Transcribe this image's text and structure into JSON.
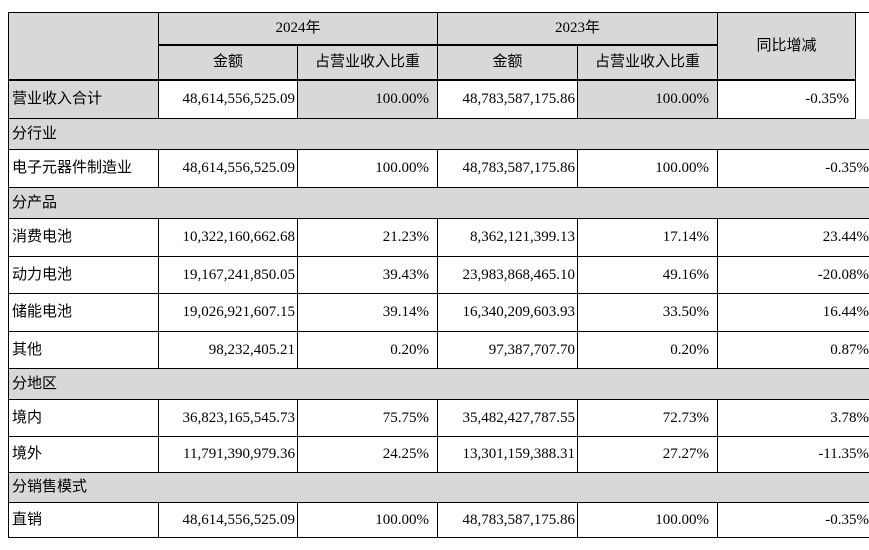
{
  "colors": {
    "shading": "#d8d8d8",
    "border": "#000000",
    "text": "#000000",
    "page_bg": "#ffffff"
  },
  "table": {
    "header": {
      "year_2024": "2024年",
      "year_2023": "2023年",
      "amount": "金额",
      "ratio": "占营业收入比重",
      "yoy": "同比增减"
    },
    "rows": [
      {
        "type": "data",
        "highlight": true,
        "label": "营业收入合计",
        "a2024": "48,614,556,525.09",
        "r2024": "100.00%",
        "a2023": "48,783,587,175.86",
        "r2023": "100.00%",
        "yoy": "-0.35%"
      },
      {
        "type": "band",
        "label": "分行业"
      },
      {
        "type": "data",
        "label": "电子元器件制造业",
        "a2024": "48,614,556,525.09",
        "r2024": "100.00%",
        "a2023": "48,783,587,175.86",
        "r2023": "100.00%",
        "yoy": "-0.35%"
      },
      {
        "type": "band",
        "label": "分产品"
      },
      {
        "type": "data",
        "label": "消费电池",
        "a2024": "10,322,160,662.68",
        "r2024": "21.23%",
        "a2023": "8,362,121,399.13",
        "r2023": "17.14%",
        "yoy": "23.44%"
      },
      {
        "type": "data",
        "label": "动力电池",
        "a2024": "19,167,241,850.05",
        "r2024": "39.43%",
        "a2023": "23,983,868,465.10",
        "r2023": "49.16%",
        "yoy": "-20.08%"
      },
      {
        "type": "data",
        "label": "储能电池",
        "a2024": "19,026,921,607.15",
        "r2024": "39.14%",
        "a2023": "16,340,209,603.93",
        "r2023": "33.50%",
        "yoy": "16.44%"
      },
      {
        "type": "data",
        "label": "其他",
        "a2024": "98,232,405.21",
        "r2024": "0.20%",
        "a2023": "97,387,707.70",
        "r2023": "0.20%",
        "yoy": "0.87%"
      },
      {
        "type": "band",
        "label": "分地区"
      },
      {
        "type": "data",
        "label": "境内",
        "a2024": "36,823,165,545.73",
        "r2024": "75.75%",
        "a2023": "35,482,427,787.55",
        "r2023": "72.73%",
        "yoy": "3.78%"
      },
      {
        "type": "data",
        "label": "境外",
        "a2024": "11,791,390,979.36",
        "r2024": "24.25%",
        "a2023": "13,301,159,388.31",
        "r2023": "27.27%",
        "yoy": "-11.35%"
      },
      {
        "type": "band",
        "label": "分销售模式"
      },
      {
        "type": "data",
        "label": "直销",
        "a2024": "48,614,556,525.09",
        "r2024": "100.00%",
        "a2023": "48,783,587,175.86",
        "r2023": "100.00%",
        "yoy": "-0.35%"
      }
    ]
  }
}
